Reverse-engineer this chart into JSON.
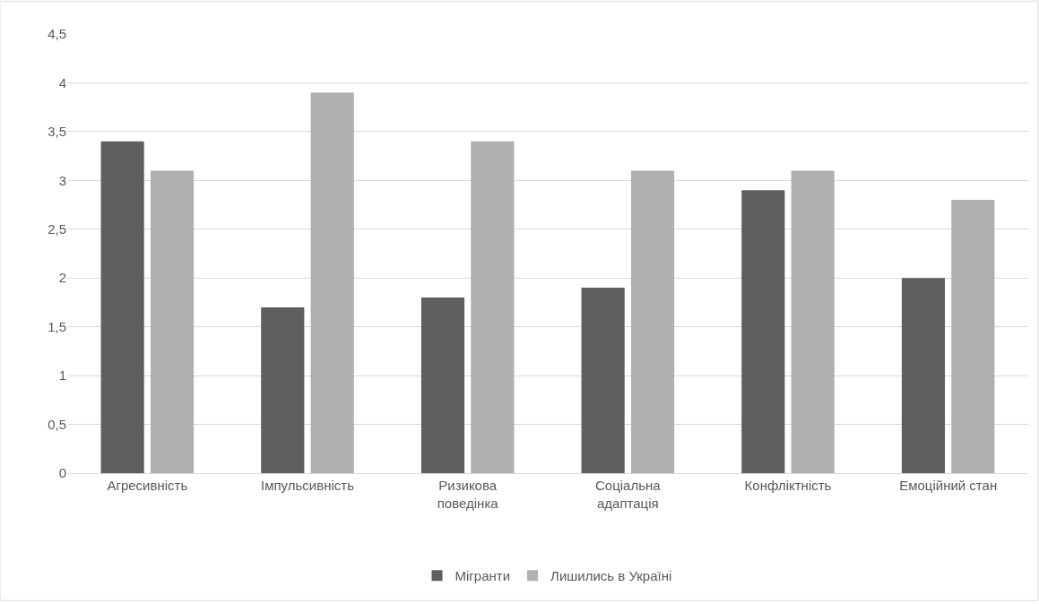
{
  "chart_data": {
    "type": "bar",
    "categories": [
      "Агресивність",
      "Імпульсивність",
      "Ризикова поведінка",
      "Соціальна адаптація",
      "Конфліктність",
      "Емоційний стан"
    ],
    "series": [
      {
        "name": "Мігранти",
        "color": "#5f5f5f",
        "values": [
          3.4,
          1.7,
          1.8,
          1.9,
          2.9,
          2.0
        ]
      },
      {
        "name": "Лишились в Україні",
        "color": "#b0b0b0",
        "values": [
          3.1,
          3.9,
          3.4,
          3.1,
          3.1,
          2.8
        ]
      }
    ],
    "ylim": [
      0,
      4.5
    ],
    "yticks": [
      0,
      {
        "value": 0.5,
        "label": "0,5"
      },
      1,
      {
        "value": 1.5,
        "label": "1,5"
      },
      2,
      {
        "value": 2.5,
        "label": "2,5"
      },
      3,
      {
        "value": 3.5,
        "label": "3,5"
      },
      4,
      {
        "value": 4.5,
        "label": "4,5"
      }
    ],
    "grid": "y",
    "legend": "bottom"
  }
}
